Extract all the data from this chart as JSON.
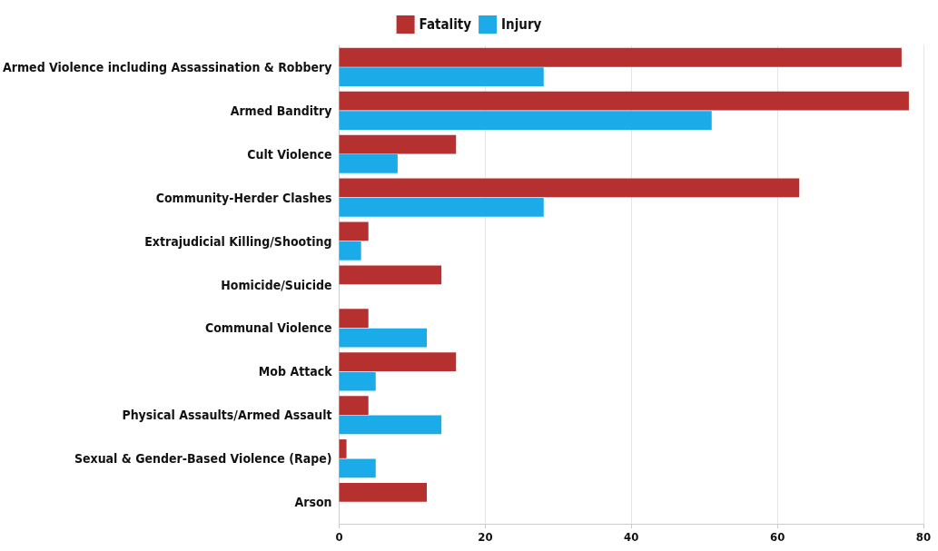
{
  "chart_data": {
    "type": "bar",
    "orientation": "horizontal",
    "categories": [
      "Armed Violence including Assassination & Robbery",
      "Armed Banditry",
      "Cult Violence",
      "Community-Herder Clashes",
      "Extrajudicial Killing/Shooting",
      "Homicide/Suicide",
      "Communal Violence",
      "Mob Attack",
      "Physical Assaults/Armed Assault",
      "Sexual & Gender-Based Violence (Rape)",
      "Arson"
    ],
    "series": [
      {
        "name": "Fatality",
        "color": "#b5302f",
        "values": [
          77,
          78,
          16,
          63,
          4,
          14,
          4,
          16,
          4,
          1,
          12
        ]
      },
      {
        "name": "Injury",
        "color": "#1aabe8",
        "values": [
          28,
          51,
          8,
          28,
          3,
          0,
          12,
          5,
          14,
          5,
          0
        ]
      }
    ],
    "xlim": [
      0,
      80
    ],
    "xticks": [
      0,
      20,
      40,
      60,
      80
    ],
    "grid": "x",
    "legend": "top"
  }
}
